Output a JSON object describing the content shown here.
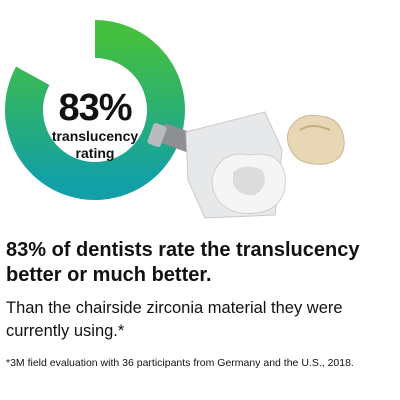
{
  "chart_data": {
    "type": "donut",
    "values": [
      83
    ],
    "value_labels": [
      "83%"
    ],
    "center_label": "translucency rating",
    "colors": [
      "#44bf3f",
      "#12a0a6"
    ]
  },
  "headline": "83% of dentists rate the translucency better or much better.",
  "body": "Than the chairside zirconia material they were currently using.*",
  "footnote": "*3M field evaluation with 36 participants from Germany and the U.S., 2018."
}
